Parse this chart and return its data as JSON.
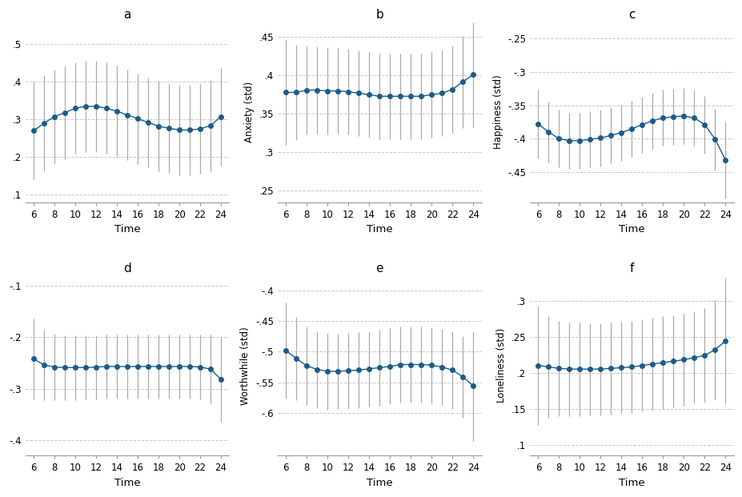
{
  "time": [
    6,
    7,
    8,
    9,
    10,
    11,
    12,
    13,
    14,
    15,
    16,
    17,
    18,
    19,
    20,
    21,
    22,
    23,
    24
  ],
  "subplots": [
    {
      "label": "a",
      "ylabel": "",
      "y": [
        0.27,
        0.29,
        0.308,
        0.318,
        0.33,
        0.335,
        0.335,
        0.33,
        0.322,
        0.312,
        0.302,
        0.292,
        0.282,
        0.277,
        0.272,
        0.272,
        0.275,
        0.284,
        0.308
      ],
      "yerr_lo": [
        0.13,
        0.128,
        0.125,
        0.123,
        0.122,
        0.121,
        0.121,
        0.121,
        0.121,
        0.12,
        0.12,
        0.12,
        0.12,
        0.12,
        0.12,
        0.12,
        0.12,
        0.121,
        0.13
      ],
      "yerr_hi": [
        0.13,
        0.128,
        0.125,
        0.123,
        0.122,
        0.121,
        0.121,
        0.121,
        0.121,
        0.12,
        0.12,
        0.12,
        0.12,
        0.12,
        0.12,
        0.12,
        0.12,
        0.121,
        0.13
      ],
      "ylim_vals": [
        0.08,
        0.56
      ],
      "ytick_vals": [
        0.1,
        0.2,
        0.3,
        0.4,
        0.5
      ],
      "ytick_labels": [
        ".1",
        ".2",
        ".3",
        ".4",
        ".5"
      ]
    },
    {
      "label": "b",
      "ylabel": "Anxiety (std)",
      "y": [
        0.378,
        0.378,
        0.381,
        0.381,
        0.38,
        0.38,
        0.379,
        0.377,
        0.375,
        0.373,
        0.373,
        0.373,
        0.373,
        0.373,
        0.375,
        0.377,
        0.382,
        0.392,
        0.401
      ],
      "yerr_lo": [
        0.068,
        0.062,
        0.058,
        0.057,
        0.057,
        0.056,
        0.056,
        0.056,
        0.056,
        0.056,
        0.056,
        0.056,
        0.056,
        0.056,
        0.056,
        0.056,
        0.057,
        0.06,
        0.068
      ],
      "yerr_hi": [
        0.068,
        0.062,
        0.058,
        0.057,
        0.057,
        0.056,
        0.056,
        0.056,
        0.056,
        0.056,
        0.056,
        0.056,
        0.056,
        0.056,
        0.056,
        0.056,
        0.057,
        0.06,
        0.068
      ],
      "ylim_vals": [
        0.235,
        0.47
      ],
      "ytick_vals": [
        0.25,
        0.3,
        0.35,
        0.4,
        0.45
      ],
      "ytick_labels": [
        ".25",
        ".3",
        ".35",
        ".4",
        ".45"
      ]
    },
    {
      "label": "c",
      "ylabel": "Happiness (std)",
      "y": [
        -0.378,
        -0.39,
        -0.4,
        -0.403,
        -0.403,
        -0.401,
        -0.399,
        -0.395,
        -0.391,
        -0.385,
        -0.379,
        -0.373,
        -0.369,
        -0.367,
        -0.366,
        -0.369,
        -0.379,
        -0.401,
        -0.432
      ],
      "yerr_lo": [
        0.052,
        0.046,
        0.043,
        0.042,
        0.042,
        0.042,
        0.042,
        0.042,
        0.042,
        0.042,
        0.042,
        0.042,
        0.042,
        0.042,
        0.042,
        0.042,
        0.043,
        0.046,
        0.058
      ],
      "yerr_hi": [
        0.052,
        0.046,
        0.043,
        0.042,
        0.042,
        0.042,
        0.042,
        0.042,
        0.042,
        0.042,
        0.042,
        0.042,
        0.042,
        0.042,
        0.042,
        0.042,
        0.043,
        0.046,
        0.058
      ],
      "ylim_vals": [
        -0.495,
        -0.225
      ],
      "ytick_vals": [
        -0.45,
        -0.4,
        -0.35,
        -0.3,
        -0.25
      ],
      "ytick_labels": [
        "-.45",
        "-.4",
        "-.35",
        "-.3",
        "-.25"
      ]
    },
    {
      "label": "d",
      "ylabel": "",
      "y": [
        -0.242,
        -0.254,
        -0.258,
        -0.259,
        -0.259,
        -0.259,
        -0.258,
        -0.257,
        -0.257,
        -0.257,
        -0.257,
        -0.257,
        -0.257,
        -0.257,
        -0.257,
        -0.257,
        -0.258,
        -0.262,
        -0.282
      ],
      "yerr_lo": [
        0.078,
        0.068,
        0.064,
        0.063,
        0.063,
        0.062,
        0.062,
        0.062,
        0.062,
        0.062,
        0.062,
        0.062,
        0.062,
        0.062,
        0.062,
        0.062,
        0.063,
        0.067,
        0.082
      ],
      "yerr_hi": [
        0.078,
        0.068,
        0.064,
        0.063,
        0.063,
        0.062,
        0.062,
        0.062,
        0.062,
        0.062,
        0.062,
        0.062,
        0.062,
        0.062,
        0.062,
        0.062,
        0.063,
        0.067,
        0.082
      ],
      "ylim_vals": [
        -0.43,
        -0.08
      ],
      "ytick_vals": [
        -0.4,
        -0.3,
        -0.2,
        -0.1
      ],
      "ytick_labels": [
        "-.4",
        "-.3",
        "-.2",
        "-.1"
      ]
    },
    {
      "label": "e",
      "ylabel": "Worthwhile (std)",
      "y": [
        -0.498,
        -0.511,
        -0.523,
        -0.529,
        -0.532,
        -0.532,
        -0.531,
        -0.53,
        -0.528,
        -0.526,
        -0.524,
        -0.521,
        -0.521,
        -0.521,
        -0.522,
        -0.525,
        -0.53,
        -0.541,
        -0.556
      ],
      "yerr_lo": [
        0.078,
        0.068,
        0.064,
        0.063,
        0.063,
        0.062,
        0.062,
        0.062,
        0.062,
        0.062,
        0.062,
        0.062,
        0.062,
        0.062,
        0.062,
        0.062,
        0.063,
        0.067,
        0.09
      ],
      "yerr_hi": [
        0.078,
        0.068,
        0.064,
        0.063,
        0.063,
        0.062,
        0.062,
        0.062,
        0.062,
        0.062,
        0.062,
        0.062,
        0.062,
        0.062,
        0.062,
        0.062,
        0.063,
        0.067,
        0.09
      ],
      "ylim_vals": [
        -0.67,
        -0.375
      ],
      "ytick_vals": [
        -0.6,
        -0.55,
        -0.5,
        -0.45,
        -0.4
      ],
      "ytick_labels": [
        "-.6",
        "-.55",
        "-.5",
        "-.45",
        "-.4"
      ]
    },
    {
      "label": "f",
      "ylabel": "Loneliness (std)",
      "y": [
        0.21,
        0.208,
        0.206,
        0.205,
        0.205,
        0.205,
        0.205,
        0.206,
        0.207,
        0.208,
        0.21,
        0.212,
        0.214,
        0.216,
        0.218,
        0.221,
        0.224,
        0.232,
        0.244
      ],
      "yerr_lo": [
        0.082,
        0.07,
        0.066,
        0.065,
        0.065,
        0.064,
        0.064,
        0.064,
        0.064,
        0.064,
        0.064,
        0.064,
        0.064,
        0.064,
        0.064,
        0.064,
        0.065,
        0.069,
        0.088
      ],
      "yerr_hi": [
        0.082,
        0.07,
        0.066,
        0.065,
        0.065,
        0.064,
        0.064,
        0.064,
        0.064,
        0.064,
        0.064,
        0.064,
        0.064,
        0.064,
        0.064,
        0.064,
        0.065,
        0.069,
        0.088
      ],
      "ylim_vals": [
        0.085,
        0.335
      ],
      "ytick_vals": [
        0.1,
        0.15,
        0.2,
        0.25,
        0.3
      ],
      "ytick_labels": [
        ".1",
        ".15",
        ".2",
        ".25",
        ".3"
      ]
    }
  ],
  "dot_color": "#1a5c8a",
  "line_color": "#1a5c8a",
  "err_color": "#aaaaaa",
  "xlabel": "Time",
  "xtick_vals": [
    6,
    8,
    10,
    12,
    14,
    16,
    18,
    20,
    22,
    24
  ],
  "xtick_labels": [
    "6",
    "8",
    "10",
    "12",
    "14",
    "16",
    "18",
    "20",
    "22",
    "24"
  ],
  "background_color": "#ffffff",
  "grid_color": "#c8c8c8",
  "grid_linestyle": "--"
}
